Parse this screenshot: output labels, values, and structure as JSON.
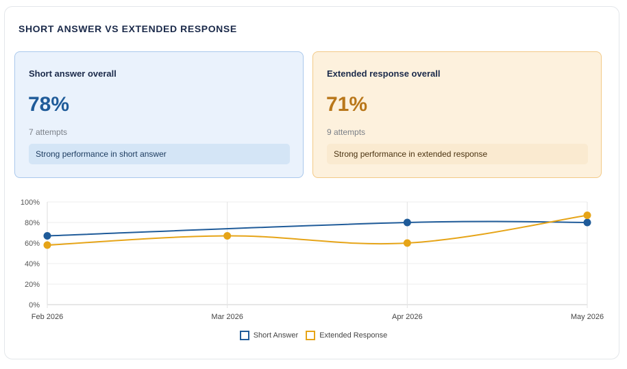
{
  "panel": {
    "title": "SHORT ANSWER VS EXTENDED RESPONSE"
  },
  "cards": {
    "short": {
      "title": "Short answer overall",
      "value": "78%",
      "attempts": "7 attempts",
      "note": "Strong performance in short answer"
    },
    "extended": {
      "title": "Extended response overall",
      "value": "71%",
      "attempts": "9 attempts",
      "note": "Strong performance in extended response"
    }
  },
  "colors": {
    "short": "#1f5b99",
    "extended": "#e6a417"
  },
  "chart_data": {
    "type": "line",
    "categories": [
      "Feb 2026",
      "Mar 2026",
      "Apr 2026",
      "May 2026"
    ],
    "series": [
      {
        "name": "Short Answer",
        "values": [
          67,
          null,
          80,
          80
        ]
      },
      {
        "name": "Extended Response",
        "values": [
          58,
          67,
          60,
          87
        ]
      }
    ],
    "ylim": [
      0,
      100
    ],
    "yticks": [
      "0%",
      "20%",
      "40%",
      "60%",
      "80%",
      "100%"
    ],
    "title": "",
    "xlabel": "",
    "ylabel": "",
    "grid": true,
    "legend": "bottom"
  }
}
